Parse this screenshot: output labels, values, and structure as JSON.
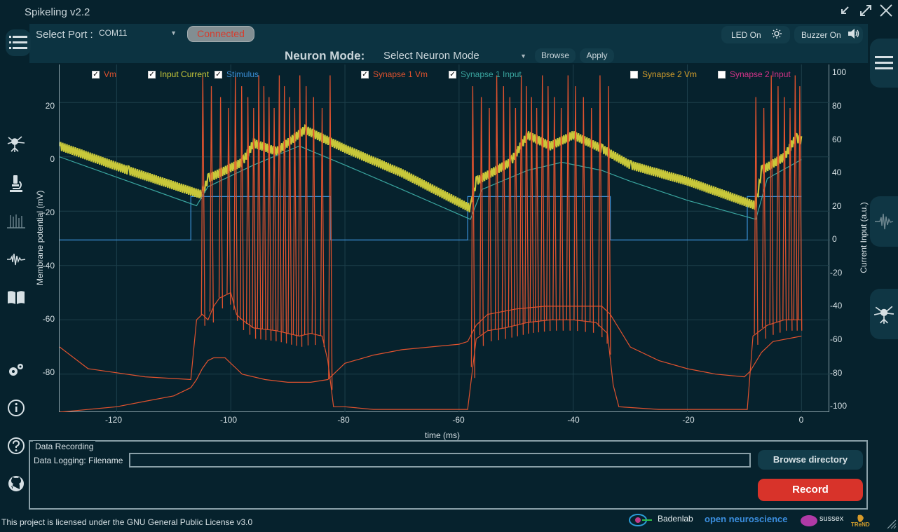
{
  "window": {
    "title": "Spikeling v2.2"
  },
  "toolbar": {
    "port_label": "Select Port :",
    "port_value": "COM11",
    "connect_label": "Connected",
    "led_label": "LED On",
    "buzzer_label": "Buzzer On",
    "mode_label": "Neuron Mode:",
    "mode_value": "Select Neuron Mode",
    "browse_label": "Browse",
    "apply_label": "Apply"
  },
  "legend": [
    {
      "label": "Vm",
      "checked": true,
      "color": "#e0522e"
    },
    {
      "label": "Input Current",
      "checked": true,
      "color": "#c8c83a"
    },
    {
      "label": "Stimulus",
      "checked": true,
      "color": "#3b8fd6"
    },
    {
      "label": "Synapse 1 Vm",
      "checked": true,
      "color": "#e0522e"
    },
    {
      "label": "Synapse 1 Input",
      "checked": true,
      "color": "#3aa6a0"
    },
    {
      "label": "Synapse 2 Vm",
      "checked": false,
      "color": "#d6a02c"
    },
    {
      "label": "Synapse 2 Input",
      "checked": false,
      "color": "#d6338a"
    }
  ],
  "chart_data": {
    "type": "line",
    "xlabel": "time (ms)",
    "ylabel": "Membrane potential (mV)",
    "y2label": "Current Input (a.u.)",
    "xlim": [
      -130,
      5
    ],
    "ylim": [
      -94,
      34
    ],
    "y2lim": [
      -103,
      105
    ],
    "x_ticks": [
      "-120",
      "-100",
      "-80",
      "-60",
      "-40",
      "-20",
      "0"
    ],
    "y_ticks": [
      "20",
      "0",
      "-20",
      "-40",
      "-60",
      "-80"
    ],
    "y2_ticks": [
      "100",
      "80",
      "60",
      "40",
      "20",
      "0",
      "-20",
      "-40",
      "-60",
      "-80",
      "-100"
    ],
    "grid": true,
    "series": [
      {
        "name": "Stimulus",
        "axis": "right",
        "color": "#3b8fd6",
        "points": [
          [
            -130,
            0
          ],
          [
            -107,
            0
          ],
          [
            -107,
            26
          ],
          [
            -82.5,
            26
          ],
          [
            -82.5,
            0
          ],
          [
            -58.5,
            0
          ],
          [
            -58.5,
            26
          ],
          [
            -33.5,
            26
          ],
          [
            -33.5,
            0
          ],
          [
            -9.5,
            0
          ],
          [
            -9.5,
            26
          ],
          [
            0,
            26
          ]
        ]
      },
      {
        "name": "Input Current",
        "axis": "left",
        "color": "#c8c83a",
        "points": [
          [
            -130,
            4
          ],
          [
            -118,
            -5
          ],
          [
            -105,
            -14
          ],
          [
            -104,
            -8
          ],
          [
            -98,
            -2
          ],
          [
            -96,
            5
          ],
          [
            -92,
            2
          ],
          [
            -87,
            10
          ],
          [
            -80,
            3
          ],
          [
            -70,
            -6
          ],
          [
            -58,
            -19
          ],
          [
            -57,
            -9
          ],
          [
            -51,
            -2
          ],
          [
            -48,
            8
          ],
          [
            -44,
            4
          ],
          [
            -40,
            8
          ],
          [
            -35,
            3
          ],
          [
            -30,
            -3
          ],
          [
            -20,
            -9
          ],
          [
            -8,
            -18
          ],
          [
            -7,
            -5
          ],
          [
            -3,
            0
          ],
          [
            -1,
            7
          ],
          [
            0,
            6
          ]
        ]
      },
      {
        "name": "Synapse 1 Input",
        "axis": "left",
        "color": "#3aa6a0",
        "points": [
          [
            -130,
            0
          ],
          [
            -118,
            -9
          ],
          [
            -106,
            -18
          ],
          [
            -104,
            -11
          ],
          [
            -96,
            -3
          ],
          [
            -88,
            4
          ],
          [
            -80,
            -3
          ],
          [
            -70,
            -12
          ],
          [
            -58,
            -23
          ],
          [
            -56,
            -12
          ],
          [
            -48,
            -5
          ],
          [
            -42,
            -2
          ],
          [
            -35,
            -5
          ],
          [
            -30,
            -9
          ],
          [
            -20,
            -16
          ],
          [
            -8,
            -23
          ],
          [
            -6,
            -8
          ],
          [
            0,
            -1
          ]
        ]
      },
      {
        "name": "Vm",
        "axis": "left",
        "color": "#e0522e",
        "points": [
          [
            -130,
            -70
          ],
          [
            -125,
            -78
          ],
          [
            -115,
            -81
          ],
          [
            -107,
            -82
          ],
          [
            -106,
            -60
          ],
          [
            -105,
            -58
          ],
          [
            -104,
            -60
          ],
          [
            -103,
            -55
          ],
          [
            -102,
            -52
          ],
          [
            -100,
            -50
          ],
          [
            -99,
            -58
          ],
          [
            -98,
            -60
          ],
          [
            -96,
            -63
          ],
          [
            -92,
            -64
          ],
          [
            -88,
            -66
          ],
          [
            -86,
            -65
          ],
          [
            -84,
            -66
          ],
          [
            -83,
            -75
          ],
          [
            -82,
            -92
          ],
          [
            -80,
            -92
          ],
          [
            -75,
            -93
          ],
          [
            -65,
            -93
          ],
          [
            -58.5,
            -93
          ],
          [
            -57,
            -67
          ],
          [
            -55,
            -64
          ],
          [
            -52,
            -63
          ],
          [
            -48,
            -61
          ],
          [
            -44,
            -60
          ],
          [
            -40,
            -60
          ],
          [
            -36,
            -61
          ],
          [
            -34,
            -65
          ],
          [
            -33,
            -84
          ],
          [
            -32,
            -92
          ],
          [
            -25,
            -93
          ],
          [
            -15,
            -93
          ],
          [
            -9.5,
            -93
          ],
          [
            -8.5,
            -66
          ],
          [
            -6,
            -62
          ],
          [
            -3,
            -60
          ],
          [
            0,
            -60
          ]
        ]
      },
      {
        "name": "Synapse 1 Vm",
        "axis": "left",
        "color": "#e0522e",
        "points": [
          [
            -130,
            -94
          ],
          [
            -120,
            -92
          ],
          [
            -115,
            -90
          ],
          [
            -110,
            -88
          ],
          [
            -107,
            -85
          ],
          [
            -106,
            -82
          ],
          [
            -105,
            -78
          ],
          [
            -104,
            -75
          ],
          [
            -103,
            -74
          ],
          [
            -101,
            -74
          ],
          [
            -100,
            -76
          ],
          [
            -99,
            -78
          ],
          [
            -98,
            -80
          ],
          [
            -94,
            -82
          ],
          [
            -90,
            -83
          ],
          [
            -86,
            -83
          ],
          [
            -83,
            -82
          ],
          [
            -82,
            -80
          ],
          [
            -80,
            -76
          ],
          [
            -75,
            -73
          ],
          [
            -70,
            -71
          ],
          [
            -65,
            -70
          ],
          [
            -60,
            -69
          ],
          [
            -58.5,
            -68
          ],
          [
            -57,
            -62
          ],
          [
            -55,
            -58
          ],
          [
            -50,
            -56
          ],
          [
            -45,
            -55
          ],
          [
            -40,
            -55
          ],
          [
            -35,
            -55
          ],
          [
            -33.5,
            -58
          ],
          [
            -30,
            -70
          ],
          [
            -25,
            -75
          ],
          [
            -20,
            -78
          ],
          [
            -15,
            -80
          ],
          [
            -10,
            -81
          ],
          [
            -9,
            -79
          ],
          [
            -7,
            -72
          ],
          [
            -5,
            -68
          ],
          [
            0,
            -66
          ]
        ]
      }
    ],
    "spike_times": [
      -104.9,
      -103.4,
      -101.8,
      -100.4,
      -99.2,
      -98.1,
      -97.0,
      -96.0,
      -95.1,
      -94.2,
      -93.3,
      -92.4,
      -91.5,
      -90.6,
      -89.7,
      -88.8,
      -87.9,
      -86.8,
      -85.5,
      -84.0,
      -82.6,
      -57.6,
      -56.1,
      -54.7,
      -53.4,
      -52.2,
      -51.1,
      -50.1,
      -49.1,
      -48.2,
      -47.3,
      -46.4,
      -45.4,
      -44.4,
      -43.3,
      -42.1,
      -40.9,
      -39.6,
      -38.2,
      -36.8,
      -35.3,
      -33.8,
      -8.0,
      -6.6,
      -5.3,
      -4.1,
      -3.0,
      -2.0,
      -1.1,
      -0.3
    ],
    "spike_peak_mv": 30
  },
  "recording": {
    "group_title": "Data Recording",
    "filename_label": "Data Logging: Filename",
    "filename_value": "",
    "browse_dir_label": "Browse directory",
    "record_label": "Record"
  },
  "footer": {
    "license": "This project is licensed under the GNU General Public License v3.0",
    "logos": [
      "Badenlab",
      "open neuroscience",
      "sussex",
      "TReND"
    ]
  }
}
